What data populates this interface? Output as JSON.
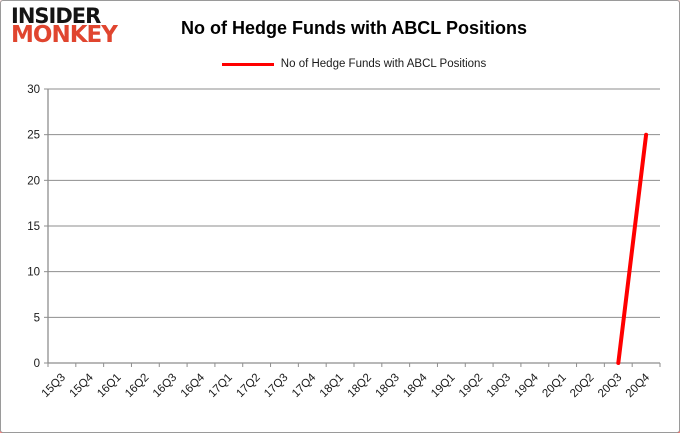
{
  "logo": {
    "line1": "INSIDER",
    "line2": "MONKEY"
  },
  "header": {
    "title": "No of Hedge Funds with ABCL Positions"
  },
  "legend": {
    "label": "No of Hedge Funds with ABCL Positions"
  },
  "colors": {
    "grid": "#8e8e8e",
    "axis": "#8e8e8e",
    "tick_label": "#1a1a1a",
    "series_red": "#ff0000",
    "logo_black": "#141414",
    "logo_red": "#e0452f"
  },
  "chart_data": {
    "type": "line",
    "title": "No of Hedge Funds with ABCL Positions",
    "categories": [
      "15Q3",
      "15Q4",
      "16Q1",
      "16Q2",
      "16Q3",
      "16Q4",
      "17Q1",
      "17Q2",
      "17Q3",
      "17Q4",
      "18Q1",
      "18Q2",
      "18Q3",
      "18Q4",
      "19Q1",
      "19Q2",
      "19Q3",
      "19Q4",
      "20Q1",
      "20Q2",
      "20Q3",
      "20Q4"
    ],
    "series": [
      {
        "name": "No of Hedge Funds with ABCL Positions",
        "color": "#ff0000",
        "values": [
          null,
          null,
          null,
          null,
          null,
          null,
          null,
          null,
          null,
          null,
          null,
          null,
          null,
          null,
          null,
          null,
          null,
          null,
          null,
          null,
          0,
          25
        ]
      }
    ],
    "ylim": [
      0,
      30
    ],
    "yticks": [
      0,
      5,
      10,
      15,
      20,
      25,
      30
    ],
    "xlabel": "",
    "ylabel": "",
    "grid": true,
    "legend_position": "top"
  }
}
